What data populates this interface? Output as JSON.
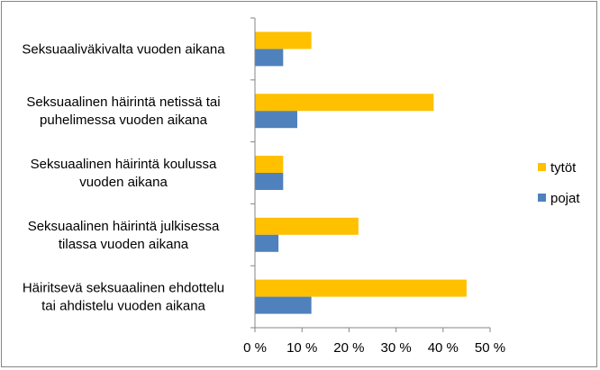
{
  "chart_data": {
    "type": "bar",
    "orientation": "horizontal",
    "categories": [
      [
        "Seksuaaliväkivalta vuoden aikana"
      ],
      [
        "Seksuaalinen häirintä netissä tai",
        "puhelimessa vuoden aikana"
      ],
      [
        "Seksuaalinen häirintä koulussa",
        "vuoden aikana"
      ],
      [
        "Seksuaalinen häirintä julkisessa",
        "tilassa vuoden aikana"
      ],
      [
        "Häiritsevä seksuaalinen ehdottelu",
        "tai ahdistelu vuoden aikana"
      ]
    ],
    "series": [
      {
        "name": "tytöt",
        "color": "#FFC000",
        "values": [
          12,
          38,
          6,
          22,
          45
        ]
      },
      {
        "name": "pojat",
        "color": "#4F81BD",
        "values": [
          6,
          9,
          6,
          5,
          12
        ]
      }
    ],
    "xlim": [
      0,
      50
    ],
    "ticks": [
      0,
      10,
      20,
      30,
      40,
      50
    ],
    "tick_labels": [
      "0 %",
      "10 %",
      "20 %",
      "30 %",
      "40 %",
      "50 %"
    ],
    "grid": false,
    "legend_position": "right"
  }
}
